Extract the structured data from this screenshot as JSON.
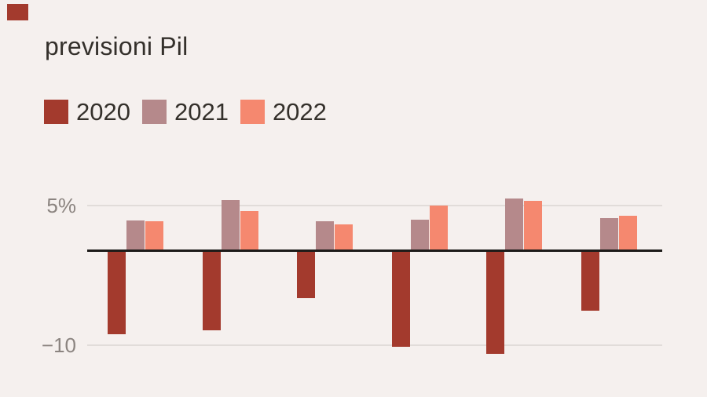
{
  "brand": {
    "color": "#a33a2d"
  },
  "title": "previsioni Pil",
  "legend": [
    {
      "label": "2020",
      "color": "#a33a2d"
    },
    {
      "label": "2021",
      "color": "#b5898b"
    },
    {
      "label": "2022",
      "color": "#f5886f"
    }
  ],
  "axis": {
    "top_tick": "5%",
    "bottom_tick": "−10"
  },
  "chart_data": {
    "type": "bar",
    "title": "previsioni Pil",
    "categories": [
      "",
      "",
      "",
      "",
      "",
      ""
    ],
    "series": [
      {
        "name": "2020",
        "color": "#a33a2d",
        "values": [
          -9.0,
          -8.6,
          -5.1,
          -10.3,
          -11.1,
          -6.4
        ]
      },
      {
        "name": "2021",
        "color": "#b5898b",
        "values": [
          3.3,
          5.5,
          3.2,
          3.4,
          5.7,
          3.6
        ]
      },
      {
        "name": "2022",
        "color": "#f5886f",
        "values": [
          3.2,
          4.3,
          2.9,
          4.9,
          5.4,
          3.8
        ]
      }
    ],
    "ylabel": "%",
    "ylim": [
      -11.5,
      6
    ],
    "yticks": [
      {
        "value": 5,
        "label": "5%"
      },
      {
        "value": -10,
        "label": "−10"
      }
    ],
    "grid": "horizontal gridlines at +5 and -10, solid black zero baseline",
    "legend_position": "top-left",
    "background": "#f5f0ee"
  }
}
